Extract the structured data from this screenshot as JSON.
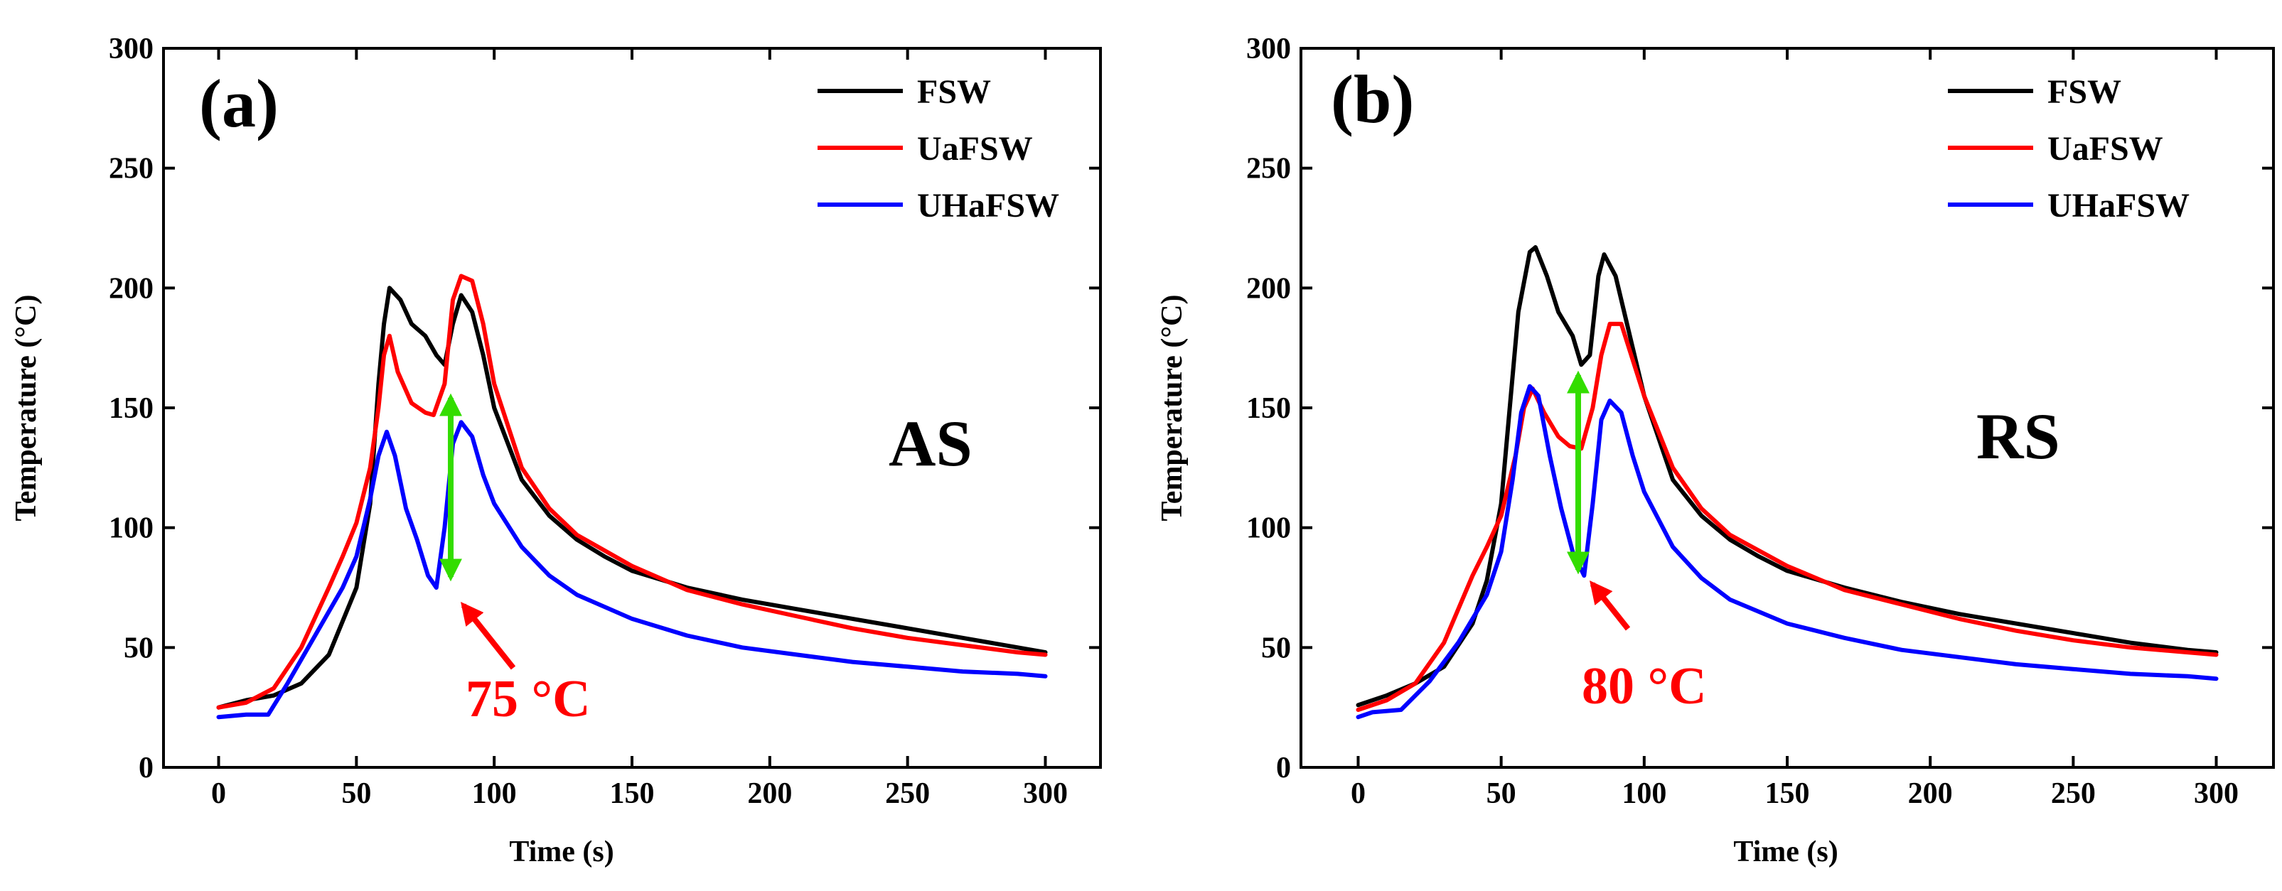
{
  "chart_data": [
    {
      "type": "line",
      "panel_label": "(a)",
      "side_label": "AS",
      "xlabel": "Time (s)",
      "ylabel": "Temperature (°C)",
      "xlim": [
        -20,
        320
      ],
      "ylim": [
        0,
        300
      ],
      "xticks": [
        "0",
        "50",
        "100",
        "150",
        "200",
        "250",
        "300"
      ],
      "yticks": [
        "0",
        "50",
        "100",
        "150",
        "200",
        "250",
        "300"
      ],
      "legend_position": "top-right",
      "series": [
        {
          "name": "FSW",
          "color": "#000000",
          "points": [
            [
              0,
              25
            ],
            [
              10,
              28
            ],
            [
              20,
              30
            ],
            [
              30,
              35
            ],
            [
              40,
              47
            ],
            [
              50,
              75
            ],
            [
              55,
              110
            ],
            [
              58,
              160
            ],
            [
              60,
              185
            ],
            [
              62,
              200
            ],
            [
              66,
              195
            ],
            [
              70,
              185
            ],
            [
              75,
              180
            ],
            [
              79,
              172
            ],
            [
              82,
              168
            ],
            [
              85,
              185
            ],
            [
              88,
              197
            ],
            [
              92,
              190
            ],
            [
              96,
              172
            ],
            [
              100,
              150
            ],
            [
              110,
              120
            ],
            [
              120,
              105
            ],
            [
              130,
              95
            ],
            [
              140,
              88
            ],
            [
              150,
              82
            ],
            [
              170,
              75
            ],
            [
              190,
              70
            ],
            [
              210,
              66
            ],
            [
              230,
              62
            ],
            [
              250,
              58
            ],
            [
              270,
              54
            ],
            [
              290,
              50
            ],
            [
              300,
              48
            ]
          ]
        },
        {
          "name": "UaFSW",
          "color": "#ff0000",
          "points": [
            [
              0,
              25
            ],
            [
              10,
              27
            ],
            [
              20,
              33
            ],
            [
              30,
              50
            ],
            [
              40,
              75
            ],
            [
              45,
              88
            ],
            [
              50,
              102
            ],
            [
              55,
              125
            ],
            [
              58,
              150
            ],
            [
              60,
              172
            ],
            [
              62,
              180
            ],
            [
              65,
              165
            ],
            [
              70,
              152
            ],
            [
              75,
              148
            ],
            [
              78,
              147
            ],
            [
              82,
              160
            ],
            [
              85,
              195
            ],
            [
              88,
              205
            ],
            [
              92,
              203
            ],
            [
              96,
              185
            ],
            [
              100,
              160
            ],
            [
              110,
              125
            ],
            [
              120,
              108
            ],
            [
              130,
              97
            ],
            [
              150,
              84
            ],
            [
              170,
              74
            ],
            [
              190,
              68
            ],
            [
              210,
              63
            ],
            [
              230,
              58
            ],
            [
              250,
              54
            ],
            [
              270,
              51
            ],
            [
              290,
              48
            ],
            [
              300,
              47
            ]
          ]
        },
        {
          "name": "UHaFSW",
          "color": "#0000ff",
          "points": [
            [
              0,
              21
            ],
            [
              10,
              22
            ],
            [
              18,
              22
            ],
            [
              25,
              35
            ],
            [
              35,
              55
            ],
            [
              45,
              75
            ],
            [
              50,
              88
            ],
            [
              55,
              112
            ],
            [
              58,
              130
            ],
            [
              61,
              140
            ],
            [
              64,
              130
            ],
            [
              68,
              108
            ],
            [
              72,
              95
            ],
            [
              76,
              80
            ],
            [
              79,
              75
            ],
            [
              82,
              100
            ],
            [
              85,
              135
            ],
            [
              88,
              144
            ],
            [
              92,
              138
            ],
            [
              96,
              122
            ],
            [
              100,
              110
            ],
            [
              110,
              92
            ],
            [
              120,
              80
            ],
            [
              130,
              72
            ],
            [
              150,
              62
            ],
            [
              170,
              55
            ],
            [
              190,
              50
            ],
            [
              210,
              47
            ],
            [
              230,
              44
            ],
            [
              250,
              42
            ],
            [
              270,
              40
            ],
            [
              290,
              39
            ],
            [
              300,
              38
            ]
          ]
        }
      ],
      "annotation": {
        "text": "75 °C",
        "color": "#ff0000",
        "arrow_color": "#33dd00",
        "x": 80,
        "y_top": 158,
        "y_bottom": 78
      }
    },
    {
      "type": "line",
      "panel_label": "(b)",
      "side_label": "RS",
      "xlabel": "Time (s)",
      "ylabel": "Temperature (°C)",
      "xlim": [
        -20,
        320
      ],
      "ylim": [
        0,
        300
      ],
      "xticks": [
        "0",
        "50",
        "100",
        "150",
        "200",
        "250",
        "300"
      ],
      "yticks": [
        "0",
        "50",
        "100",
        "150",
        "200",
        "250",
        "300"
      ],
      "legend_position": "top-right",
      "series": [
        {
          "name": "FSW",
          "color": "#000000",
          "points": [
            [
              0,
              26
            ],
            [
              10,
              30
            ],
            [
              20,
              35
            ],
            [
              30,
              42
            ],
            [
              40,
              60
            ],
            [
              45,
              78
            ],
            [
              50,
              110
            ],
            [
              53,
              150
            ],
            [
              56,
              190
            ],
            [
              60,
              215
            ],
            [
              62,
              217
            ],
            [
              66,
              205
            ],
            [
              70,
              190
            ],
            [
              75,
              180
            ],
            [
              78,
              168
            ],
            [
              81,
              172
            ],
            [
              84,
              205
            ],
            [
              86,
              214
            ],
            [
              90,
              205
            ],
            [
              95,
              180
            ],
            [
              100,
              155
            ],
            [
              110,
              120
            ],
            [
              120,
              105
            ],
            [
              130,
              95
            ],
            [
              140,
              88
            ],
            [
              150,
              82
            ],
            [
              170,
              75
            ],
            [
              190,
              69
            ],
            [
              210,
              64
            ],
            [
              230,
              60
            ],
            [
              250,
              56
            ],
            [
              270,
              52
            ],
            [
              290,
              49
            ],
            [
              300,
              48
            ]
          ]
        },
        {
          "name": "UaFSW",
          "color": "#ff0000",
          "points": [
            [
              0,
              24
            ],
            [
              10,
              28
            ],
            [
              20,
              35
            ],
            [
              30,
              52
            ],
            [
              40,
              80
            ],
            [
              45,
              92
            ],
            [
              50,
              105
            ],
            [
              55,
              130
            ],
            [
              58,
              150
            ],
            [
              61,
              158
            ],
            [
              65,
              148
            ],
            [
              70,
              138
            ],
            [
              74,
              134
            ],
            [
              78,
              133
            ],
            [
              82,
              150
            ],
            [
              85,
              172
            ],
            [
              88,
              185
            ],
            [
              92,
              185
            ],
            [
              96,
              170
            ],
            [
              100,
              155
            ],
            [
              110,
              125
            ],
            [
              120,
              108
            ],
            [
              130,
              97
            ],
            [
              150,
              84
            ],
            [
              170,
              74
            ],
            [
              190,
              68
            ],
            [
              210,
              62
            ],
            [
              230,
              57
            ],
            [
              250,
              53
            ],
            [
              270,
              50
            ],
            [
              290,
              48
            ],
            [
              300,
              47
            ]
          ]
        },
        {
          "name": "UHaFSW",
          "color": "#0000ff",
          "points": [
            [
              0,
              21
            ],
            [
              5,
              23
            ],
            [
              15,
              24
            ],
            [
              25,
              36
            ],
            [
              35,
              52
            ],
            [
              45,
              72
            ],
            [
              50,
              90
            ],
            [
              54,
              120
            ],
            [
              57,
              148
            ],
            [
              60,
              159
            ],
            [
              63,
              155
            ],
            [
              67,
              130
            ],
            [
              71,
              108
            ],
            [
              75,
              90
            ],
            [
              79,
              80
            ],
            [
              82,
              110
            ],
            [
              85,
              145
            ],
            [
              88,
              153
            ],
            [
              92,
              148
            ],
            [
              96,
              130
            ],
            [
              100,
              115
            ],
            [
              110,
              92
            ],
            [
              120,
              79
            ],
            [
              130,
              70
            ],
            [
              150,
              60
            ],
            [
              170,
              54
            ],
            [
              190,
              49
            ],
            [
              210,
              46
            ],
            [
              230,
              43
            ],
            [
              250,
              41
            ],
            [
              270,
              39
            ],
            [
              290,
              38
            ],
            [
              300,
              37
            ]
          ]
        }
      ],
      "annotation": {
        "text": "80 °C",
        "color": "#ff0000",
        "arrow_color": "#33dd00",
        "x": 78,
        "y_top": 165,
        "y_bottom": 82
      }
    }
  ]
}
